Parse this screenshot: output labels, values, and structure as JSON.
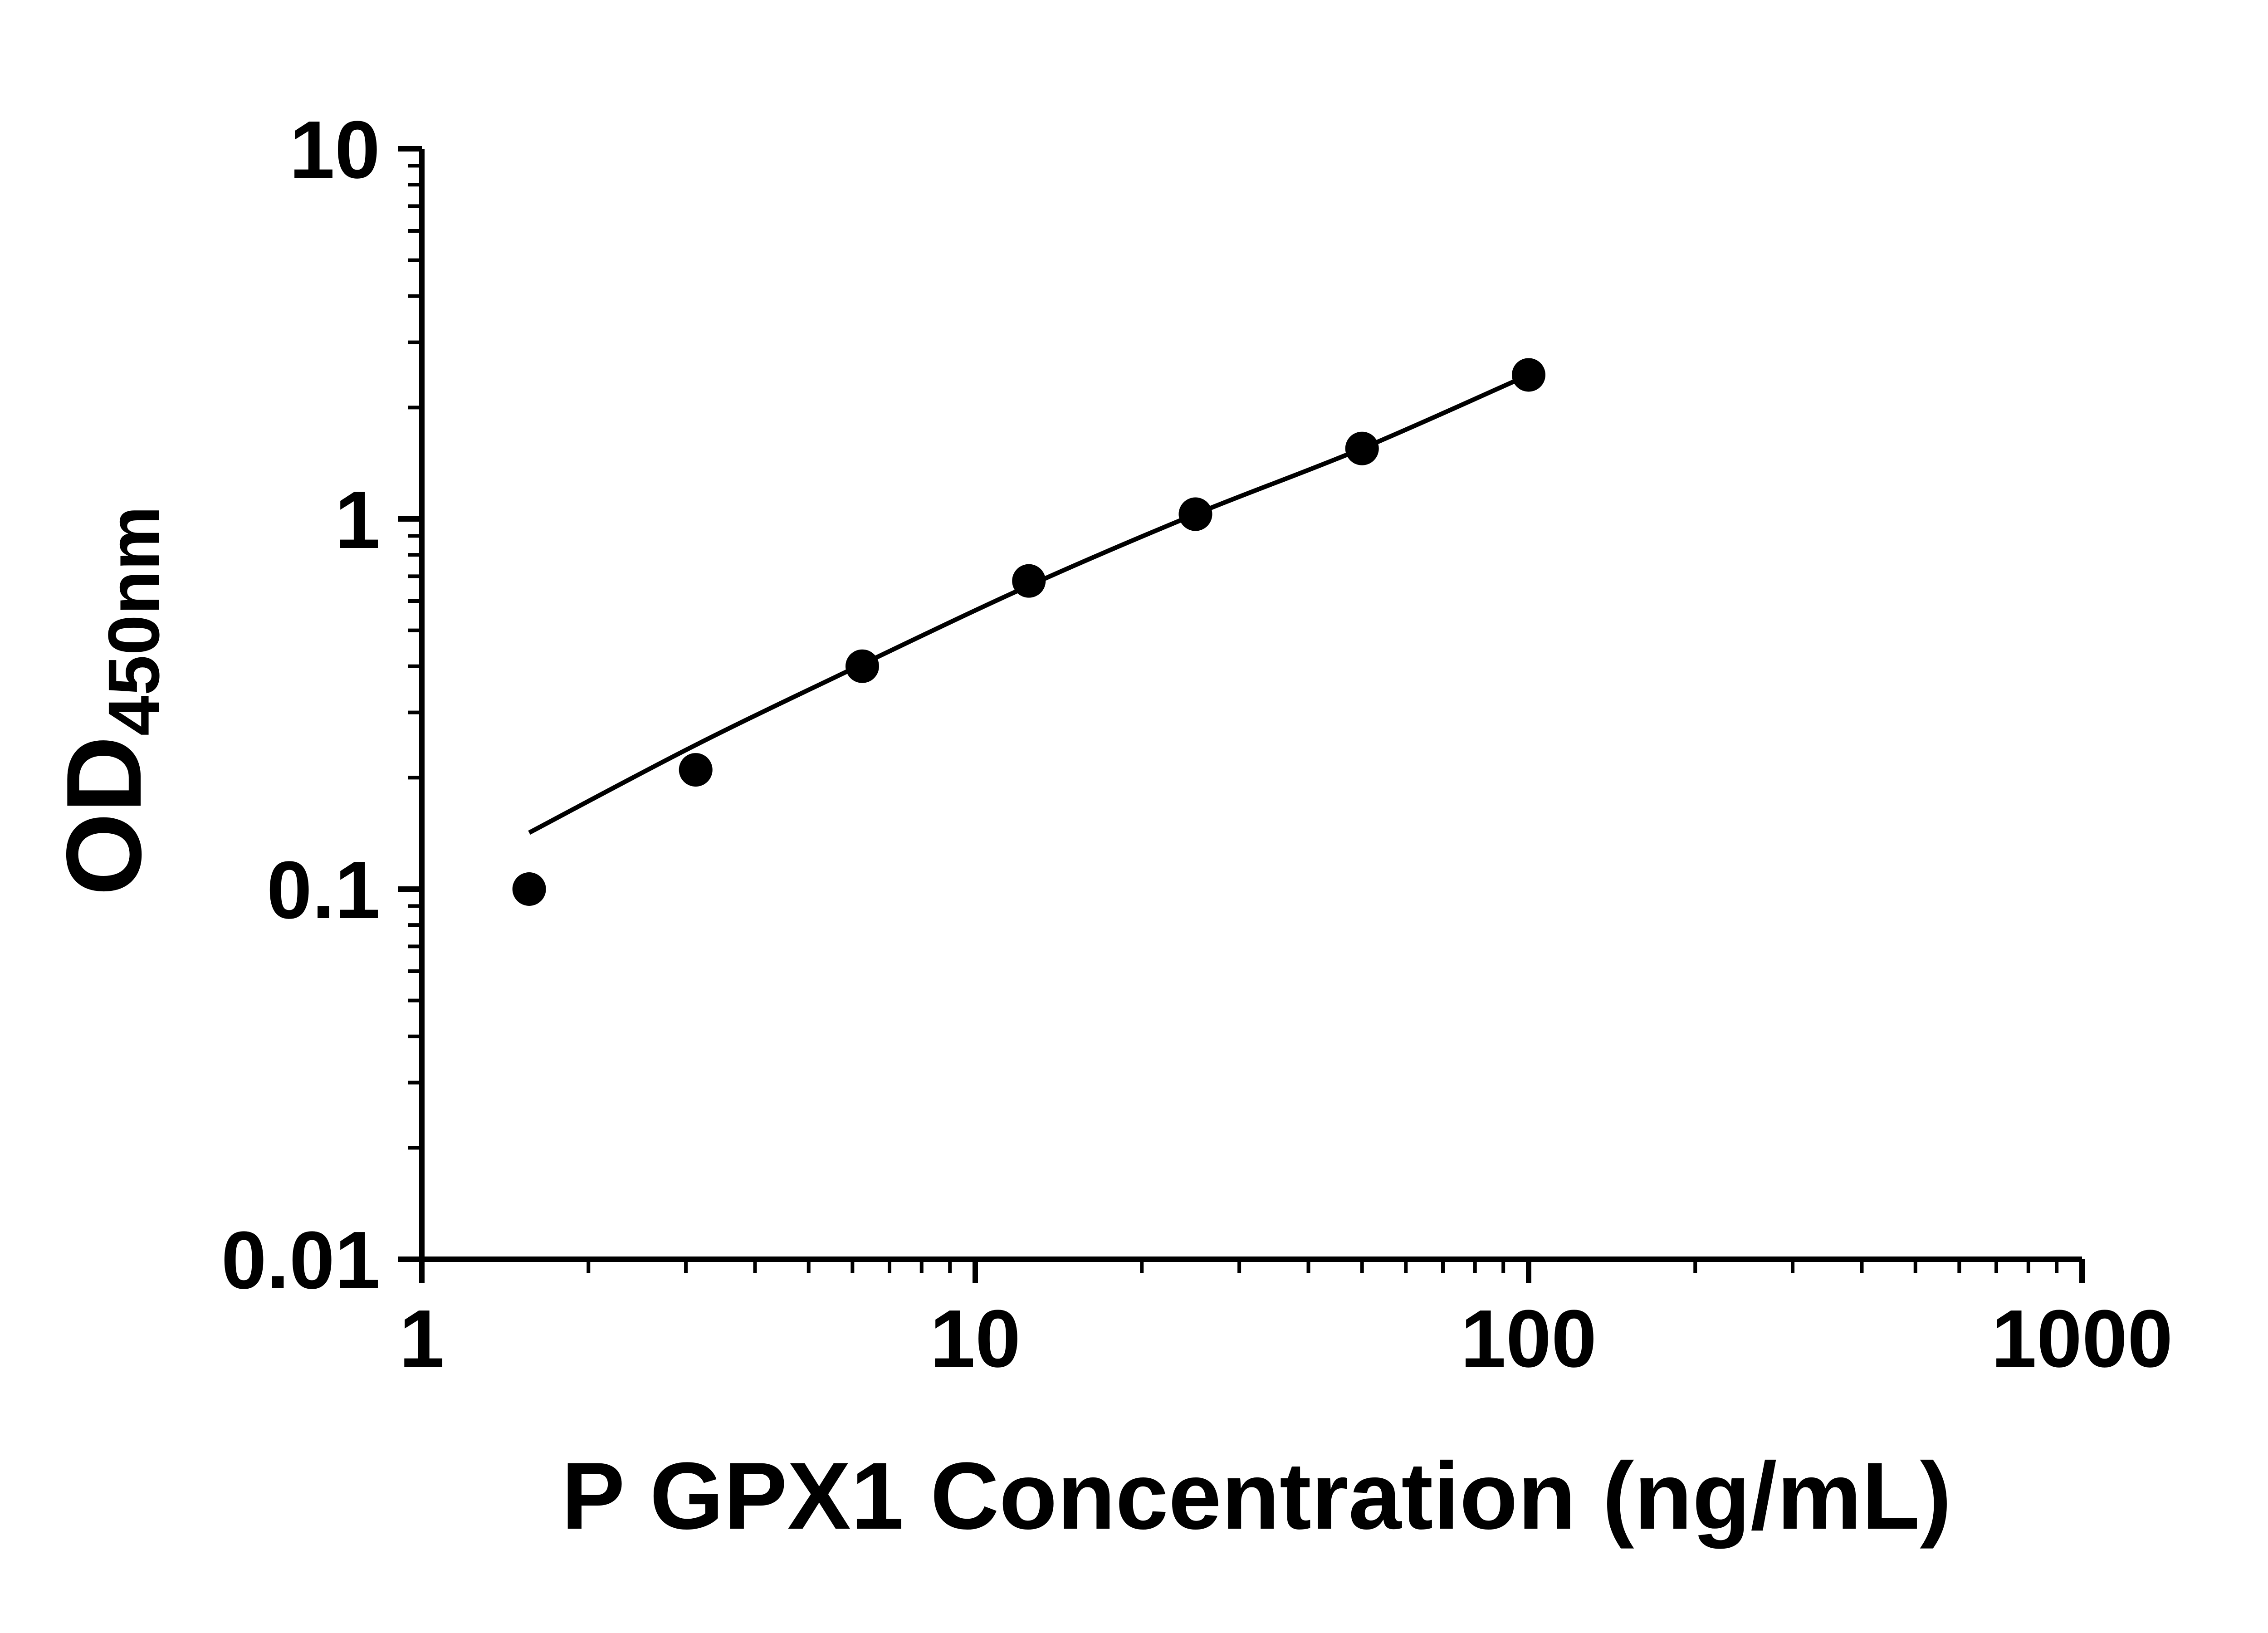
{
  "chart_data": {
    "type": "scatter",
    "title": "",
    "xlabel": "P GPX1 Concentration (ng/mL)",
    "ylabel": "OD",
    "ylabel_subscript": "450nm",
    "x_scale": "log",
    "y_scale": "log",
    "xlim": [
      1,
      1000
    ],
    "ylim": [
      0.01,
      10
    ],
    "x_ticks": [
      1,
      10,
      100,
      1000
    ],
    "x_tick_labels": [
      "1",
      "10",
      "100",
      "1000"
    ],
    "y_ticks": [
      0.01,
      0.1,
      1,
      10
    ],
    "y_tick_labels": [
      "0.01",
      "0.1",
      "1",
      "10"
    ],
    "minor_log_ticks": true,
    "grid": false,
    "legend": false,
    "series": [
      {
        "marker": "circle",
        "color": "#000000",
        "points": [
          {
            "x": 1.563,
            "y": 0.1
          },
          {
            "x": 3.125,
            "y": 0.21
          },
          {
            "x": 6.25,
            "y": 0.4
          },
          {
            "x": 12.5,
            "y": 0.68
          },
          {
            "x": 25,
            "y": 1.03
          },
          {
            "x": 50,
            "y": 1.55
          },
          {
            "x": 100,
            "y": 2.45
          }
        ]
      }
    ],
    "fit_line": {
      "color": "#000000",
      "points": [
        {
          "x": 1.563,
          "y": 0.142
        },
        {
          "x": 3.125,
          "y": 0.245
        },
        {
          "x": 6.25,
          "y": 0.405
        },
        {
          "x": 12.5,
          "y": 0.66
        },
        {
          "x": 25,
          "y": 1.03
        },
        {
          "x": 50,
          "y": 1.55
        },
        {
          "x": 100,
          "y": 2.45
        }
      ]
    },
    "colors": {
      "foreground": "#000000",
      "background": "#ffffff"
    }
  }
}
